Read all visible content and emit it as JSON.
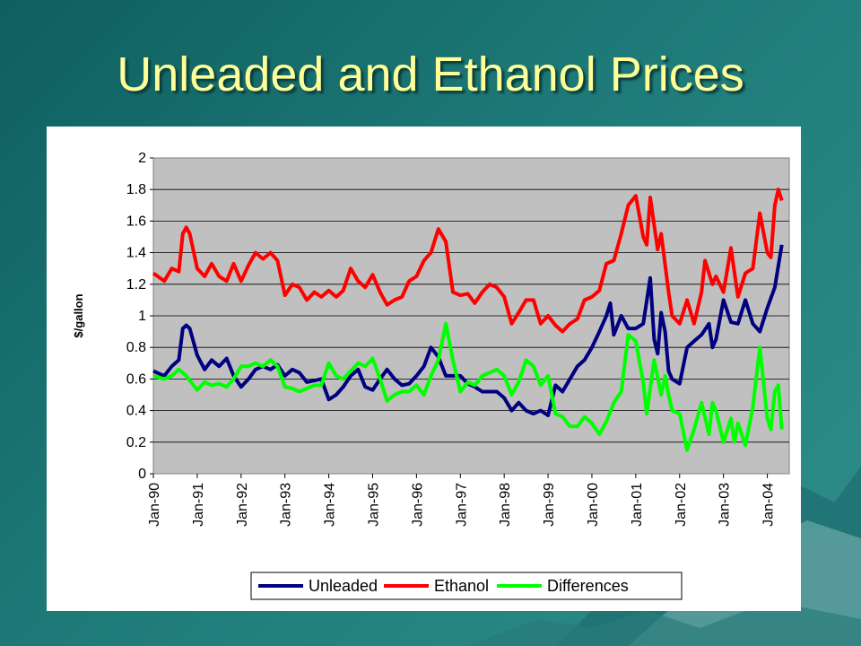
{
  "slide": {
    "title": "Unleaded and Ethanol Prices"
  },
  "colors": {
    "unleaded": "#000080",
    "ethanol": "#ff0000",
    "differences": "#00ff00",
    "plot_bg": "#c0c0c0",
    "title": "#ffff99"
  },
  "chart_data": {
    "type": "line",
    "title": "",
    "xlabel": "",
    "ylabel": "$/gallon",
    "ylim": [
      0,
      2
    ],
    "yticks": [
      "0",
      "0.2",
      "0.4",
      "0.6",
      "0.8",
      "1",
      "1.2",
      "1.4",
      "1.6",
      "1.8",
      "2"
    ],
    "xticks": [
      "Jan-90",
      "Jan-91",
      "Jan-92",
      "Jan-93",
      "Jan-94",
      "Jan-95",
      "Jan-96",
      "Jan-97",
      "Jan-98",
      "Jan-99",
      "Jan-00",
      "Jan-01",
      "Jan-02",
      "Jan-03",
      "Jan-04"
    ],
    "grid": true,
    "legend": "bottom-right",
    "x_unit": "year",
    "series": [
      {
        "name": "Unleaded",
        "points": [
          [
            1990.0,
            0.65
          ],
          [
            1990.25,
            0.62
          ],
          [
            1990.42,
            0.68
          ],
          [
            1990.58,
            0.72
          ],
          [
            1990.67,
            0.92
          ],
          [
            1990.75,
            0.94
          ],
          [
            1990.83,
            0.92
          ],
          [
            1991.0,
            0.75
          ],
          [
            1991.17,
            0.66
          ],
          [
            1991.33,
            0.72
          ],
          [
            1991.5,
            0.68
          ],
          [
            1991.67,
            0.73
          ],
          [
            1991.83,
            0.62
          ],
          [
            1992.0,
            0.55
          ],
          [
            1992.17,
            0.6
          ],
          [
            1992.33,
            0.66
          ],
          [
            1992.5,
            0.68
          ],
          [
            1992.67,
            0.66
          ],
          [
            1992.83,
            0.69
          ],
          [
            1993.0,
            0.62
          ],
          [
            1993.17,
            0.66
          ],
          [
            1993.33,
            0.64
          ],
          [
            1993.5,
            0.58
          ],
          [
            1993.67,
            0.59
          ],
          [
            1993.83,
            0.6
          ],
          [
            1994.0,
            0.47
          ],
          [
            1994.17,
            0.5
          ],
          [
            1994.33,
            0.55
          ],
          [
            1994.5,
            0.62
          ],
          [
            1994.67,
            0.66
          ],
          [
            1994.83,
            0.55
          ],
          [
            1995.0,
            0.53
          ],
          [
            1995.17,
            0.6
          ],
          [
            1995.33,
            0.66
          ],
          [
            1995.5,
            0.6
          ],
          [
            1995.67,
            0.56
          ],
          [
            1995.83,
            0.57
          ],
          [
            1996.0,
            0.62
          ],
          [
            1996.17,
            0.68
          ],
          [
            1996.33,
            0.8
          ],
          [
            1996.5,
            0.74
          ],
          [
            1996.67,
            0.62
          ],
          [
            1996.83,
            0.62
          ],
          [
            1997.0,
            0.62
          ],
          [
            1997.17,
            0.57
          ],
          [
            1997.33,
            0.55
          ],
          [
            1997.5,
            0.52
          ],
          [
            1997.67,
            0.52
          ],
          [
            1997.83,
            0.52
          ],
          [
            1998.0,
            0.48
          ],
          [
            1998.17,
            0.4
          ],
          [
            1998.33,
            0.45
          ],
          [
            1998.5,
            0.4
          ],
          [
            1998.67,
            0.38
          ],
          [
            1998.83,
            0.4
          ],
          [
            1999.0,
            0.37
          ],
          [
            1999.17,
            0.56
          ],
          [
            1999.33,
            0.52
          ],
          [
            1999.5,
            0.6
          ],
          [
            1999.67,
            0.68
          ],
          [
            1999.83,
            0.72
          ],
          [
            2000.0,
            0.8
          ],
          [
            2000.17,
            0.9
          ],
          [
            2000.33,
            1.0
          ],
          [
            2000.42,
            1.08
          ],
          [
            2000.5,
            0.88
          ],
          [
            2000.67,
            1.0
          ],
          [
            2000.83,
            0.92
          ],
          [
            2001.0,
            0.92
          ],
          [
            2001.17,
            0.95
          ],
          [
            2001.33,
            1.24
          ],
          [
            2001.42,
            0.85
          ],
          [
            2001.5,
            0.76
          ],
          [
            2001.58,
            1.02
          ],
          [
            2001.67,
            0.9
          ],
          [
            2001.75,
            0.65
          ],
          [
            2001.83,
            0.6
          ],
          [
            2002.0,
            0.57
          ],
          [
            2002.17,
            0.8
          ],
          [
            2002.33,
            0.84
          ],
          [
            2002.5,
            0.88
          ],
          [
            2002.67,
            0.95
          ],
          [
            2002.75,
            0.8
          ],
          [
            2002.83,
            0.85
          ],
          [
            2003.0,
            1.1
          ],
          [
            2003.17,
            0.96
          ],
          [
            2003.33,
            0.95
          ],
          [
            2003.5,
            1.1
          ],
          [
            2003.67,
            0.95
          ],
          [
            2003.83,
            0.9
          ],
          [
            2004.0,
            1.05
          ],
          [
            2004.17,
            1.18
          ],
          [
            2004.33,
            1.45
          ]
        ]
      },
      {
        "name": "Ethanol",
        "points": [
          [
            1990.0,
            1.27
          ],
          [
            1990.25,
            1.22
          ],
          [
            1990.42,
            1.3
          ],
          [
            1990.58,
            1.28
          ],
          [
            1990.67,
            1.52
          ],
          [
            1990.75,
            1.56
          ],
          [
            1990.83,
            1.52
          ],
          [
            1991.0,
            1.3
          ],
          [
            1991.17,
            1.25
          ],
          [
            1991.33,
            1.33
          ],
          [
            1991.5,
            1.25
          ],
          [
            1991.67,
            1.22
          ],
          [
            1991.83,
            1.33
          ],
          [
            1992.0,
            1.22
          ],
          [
            1992.17,
            1.32
          ],
          [
            1992.33,
            1.4
          ],
          [
            1992.5,
            1.36
          ],
          [
            1992.67,
            1.4
          ],
          [
            1992.83,
            1.35
          ],
          [
            1993.0,
            1.13
          ],
          [
            1993.17,
            1.2
          ],
          [
            1993.33,
            1.18
          ],
          [
            1993.5,
            1.1
          ],
          [
            1993.67,
            1.15
          ],
          [
            1993.83,
            1.12
          ],
          [
            1994.0,
            1.16
          ],
          [
            1994.17,
            1.12
          ],
          [
            1994.33,
            1.16
          ],
          [
            1994.5,
            1.3
          ],
          [
            1994.67,
            1.22
          ],
          [
            1994.83,
            1.18
          ],
          [
            1995.0,
            1.26
          ],
          [
            1995.17,
            1.15
          ],
          [
            1995.33,
            1.07
          ],
          [
            1995.5,
            1.1
          ],
          [
            1995.67,
            1.12
          ],
          [
            1995.83,
            1.22
          ],
          [
            1996.0,
            1.25
          ],
          [
            1996.17,
            1.35
          ],
          [
            1996.33,
            1.4
          ],
          [
            1996.5,
            1.55
          ],
          [
            1996.67,
            1.47
          ],
          [
            1996.83,
            1.15
          ],
          [
            1997.0,
            1.13
          ],
          [
            1997.17,
            1.14
          ],
          [
            1997.33,
            1.08
          ],
          [
            1997.5,
            1.15
          ],
          [
            1997.67,
            1.2
          ],
          [
            1997.83,
            1.18
          ],
          [
            1998.0,
            1.12
          ],
          [
            1998.17,
            0.95
          ],
          [
            1998.33,
            1.02
          ],
          [
            1998.5,
            1.1
          ],
          [
            1998.67,
            1.1
          ],
          [
            1998.83,
            0.95
          ],
          [
            1999.0,
            1.0
          ],
          [
            1999.17,
            0.94
          ],
          [
            1999.33,
            0.9
          ],
          [
            1999.5,
            0.95
          ],
          [
            1999.67,
            0.98
          ],
          [
            1999.83,
            1.1
          ],
          [
            2000.0,
            1.12
          ],
          [
            2000.17,
            1.16
          ],
          [
            2000.33,
            1.33
          ],
          [
            2000.5,
            1.35
          ],
          [
            2000.67,
            1.52
          ],
          [
            2000.83,
            1.7
          ],
          [
            2001.0,
            1.76
          ],
          [
            2001.17,
            1.5
          ],
          [
            2001.25,
            1.45
          ],
          [
            2001.33,
            1.75
          ],
          [
            2001.5,
            1.42
          ],
          [
            2001.58,
            1.52
          ],
          [
            2001.75,
            1.15
          ],
          [
            2001.83,
            1.0
          ],
          [
            2002.0,
            0.95
          ],
          [
            2002.17,
            1.1
          ],
          [
            2002.33,
            0.95
          ],
          [
            2002.5,
            1.15
          ],
          [
            2002.58,
            1.35
          ],
          [
            2002.75,
            1.2
          ],
          [
            2002.83,
            1.25
          ],
          [
            2003.0,
            1.15
          ],
          [
            2003.17,
            1.43
          ],
          [
            2003.33,
            1.12
          ],
          [
            2003.5,
            1.27
          ],
          [
            2003.67,
            1.3
          ],
          [
            2003.83,
            1.65
          ],
          [
            2004.0,
            1.4
          ],
          [
            2004.08,
            1.37
          ],
          [
            2004.17,
            1.7
          ],
          [
            2004.25,
            1.8
          ],
          [
            2004.33,
            1.73
          ]
        ]
      },
      {
        "name": "Differences",
        "points": [
          [
            1990.0,
            0.62
          ],
          [
            1990.25,
            0.6
          ],
          [
            1990.42,
            0.62
          ],
          [
            1990.58,
            0.66
          ],
          [
            1990.75,
            0.62
          ],
          [
            1991.0,
            0.53
          ],
          [
            1991.17,
            0.58
          ],
          [
            1991.33,
            0.56
          ],
          [
            1991.5,
            0.57
          ],
          [
            1991.67,
            0.55
          ],
          [
            1991.83,
            0.6
          ],
          [
            1992.0,
            0.68
          ],
          [
            1992.17,
            0.68
          ],
          [
            1992.33,
            0.7
          ],
          [
            1992.5,
            0.68
          ],
          [
            1992.67,
            0.72
          ],
          [
            1992.83,
            0.68
          ],
          [
            1993.0,
            0.55
          ],
          [
            1993.17,
            0.54
          ],
          [
            1993.33,
            0.52
          ],
          [
            1993.5,
            0.54
          ],
          [
            1993.67,
            0.56
          ],
          [
            1993.83,
            0.56
          ],
          [
            1994.0,
            0.7
          ],
          [
            1994.17,
            0.62
          ],
          [
            1994.33,
            0.6
          ],
          [
            1994.5,
            0.65
          ],
          [
            1994.67,
            0.7
          ],
          [
            1994.83,
            0.68
          ],
          [
            1995.0,
            0.73
          ],
          [
            1995.17,
            0.6
          ],
          [
            1995.33,
            0.46
          ],
          [
            1995.5,
            0.5
          ],
          [
            1995.67,
            0.52
          ],
          [
            1995.83,
            0.52
          ],
          [
            1996.0,
            0.56
          ],
          [
            1996.17,
            0.5
          ],
          [
            1996.33,
            0.62
          ],
          [
            1996.5,
            0.72
          ],
          [
            1996.67,
            0.95
          ],
          [
            1996.83,
            0.72
          ],
          [
            1997.0,
            0.52
          ],
          [
            1997.17,
            0.58
          ],
          [
            1997.33,
            0.56
          ],
          [
            1997.5,
            0.62
          ],
          [
            1997.67,
            0.64
          ],
          [
            1997.83,
            0.66
          ],
          [
            1998.0,
            0.62
          ],
          [
            1998.17,
            0.5
          ],
          [
            1998.33,
            0.58
          ],
          [
            1998.5,
            0.72
          ],
          [
            1998.67,
            0.68
          ],
          [
            1998.83,
            0.56
          ],
          [
            1999.0,
            0.62
          ],
          [
            1999.17,
            0.38
          ],
          [
            1999.33,
            0.36
          ],
          [
            1999.5,
            0.3
          ],
          [
            1999.67,
            0.3
          ],
          [
            1999.83,
            0.36
          ],
          [
            2000.0,
            0.32
          ],
          [
            2000.17,
            0.25
          ],
          [
            2000.33,
            0.33
          ],
          [
            2000.5,
            0.45
          ],
          [
            2000.67,
            0.52
          ],
          [
            2000.83,
            0.88
          ],
          [
            2001.0,
            0.84
          ],
          [
            2001.17,
            0.58
          ],
          [
            2001.25,
            0.38
          ],
          [
            2001.42,
            0.72
          ],
          [
            2001.58,
            0.5
          ],
          [
            2001.67,
            0.62
          ],
          [
            2001.75,
            0.5
          ],
          [
            2001.83,
            0.4
          ],
          [
            2002.0,
            0.38
          ],
          [
            2002.17,
            0.15
          ],
          [
            2002.33,
            0.28
          ],
          [
            2002.5,
            0.45
          ],
          [
            2002.67,
            0.25
          ],
          [
            2002.75,
            0.45
          ],
          [
            2002.83,
            0.4
          ],
          [
            2003.0,
            0.2
          ],
          [
            2003.17,
            0.35
          ],
          [
            2003.25,
            0.2
          ],
          [
            2003.33,
            0.32
          ],
          [
            2003.5,
            0.18
          ],
          [
            2003.67,
            0.42
          ],
          [
            2003.83,
            0.8
          ],
          [
            2004.0,
            0.35
          ],
          [
            2004.08,
            0.28
          ],
          [
            2004.17,
            0.52
          ],
          [
            2004.25,
            0.56
          ],
          [
            2004.33,
            0.28
          ]
        ]
      }
    ]
  }
}
